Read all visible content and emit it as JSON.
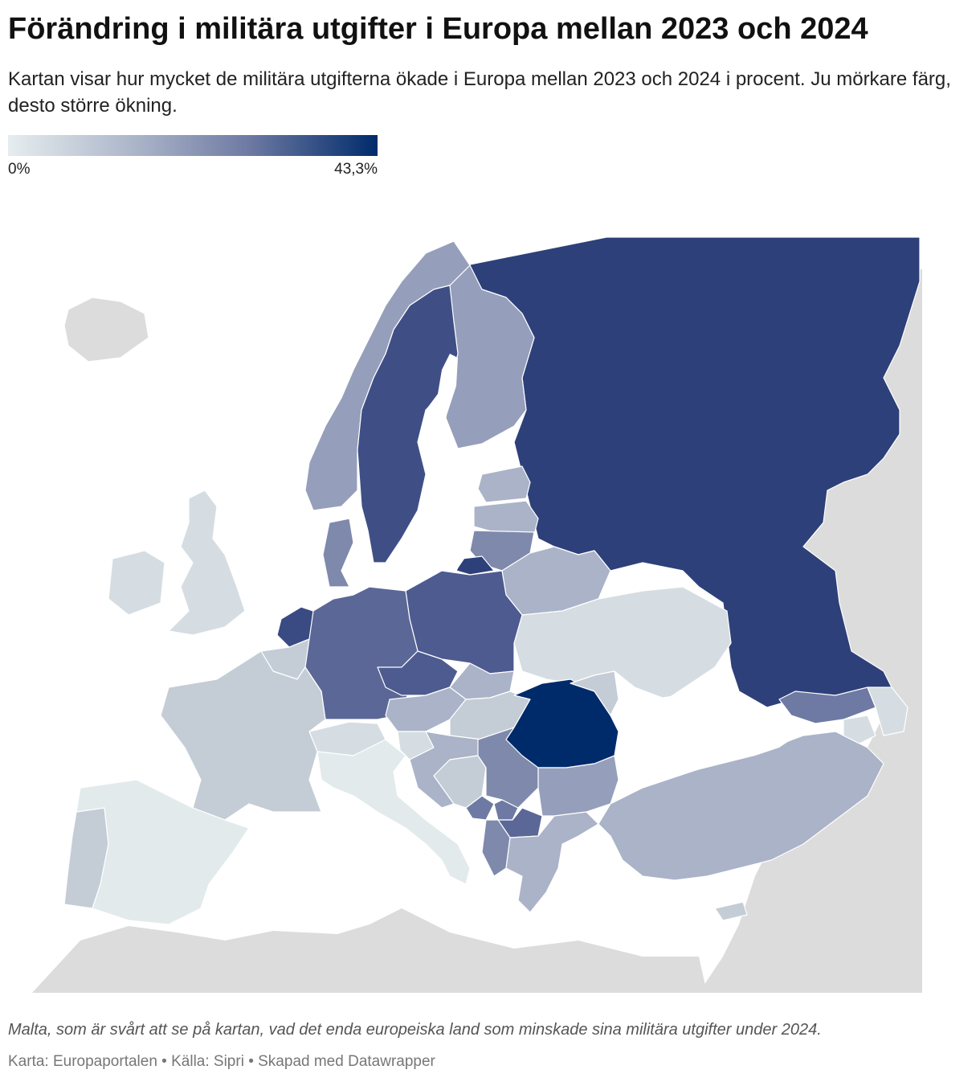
{
  "header": {
    "title": "Förändring i militära utgifter i Europa mellan 2023 och 2024",
    "subtitle": "Kartan visar hur mycket de militära utgifterna ökade i Europa mellan 2023 och 2024 i procent. Ju mörkare färg, desto större ökning."
  },
  "legend": {
    "min_label": "0%",
    "max_label": "43,3%",
    "color_low": "#e6edef",
    "color_high": "#002b6b"
  },
  "map": {
    "no_data_color": "#dcdcdc",
    "water_color": "#ffffff",
    "regions": [
      {
        "id": "russia",
        "color": "#2e4079"
      },
      {
        "id": "sweden",
        "color": "#3f4f86"
      },
      {
        "id": "norway",
        "color": "#959fbb"
      },
      {
        "id": "finland",
        "color": "#959fbb"
      },
      {
        "id": "estonia",
        "color": "#aab3c8"
      },
      {
        "id": "latvia",
        "color": "#aab3c8"
      },
      {
        "id": "lithuania",
        "color": "#7e89ac"
      },
      {
        "id": "kaliningrad",
        "color": "#2e4079"
      },
      {
        "id": "belarus",
        "color": "#aab3c8"
      },
      {
        "id": "ukraine",
        "color": "#d5dde2"
      },
      {
        "id": "poland",
        "color": "#4e5b90"
      },
      {
        "id": "germany",
        "color": "#5b6796"
      },
      {
        "id": "netherlands",
        "color": "#3a4a82"
      },
      {
        "id": "belgium",
        "color": "#c4cdd6"
      },
      {
        "id": "denmark",
        "color": "#7e89ac"
      },
      {
        "id": "czechia",
        "color": "#4e5b90"
      },
      {
        "id": "slovakia",
        "color": "#aab3c8"
      },
      {
        "id": "austria",
        "color": "#aab3c8"
      },
      {
        "id": "hungary",
        "color": "#c4cdd6"
      },
      {
        "id": "switzerland",
        "color": "#d5dde2"
      },
      {
        "id": "france",
        "color": "#c4cdd6"
      },
      {
        "id": "uk",
        "color": "#d5dde2"
      },
      {
        "id": "ireland",
        "color": "#d5dde2"
      },
      {
        "id": "iceland",
        "color": "#dcdcdc"
      },
      {
        "id": "spain",
        "color": "#e2eaec"
      },
      {
        "id": "portugal",
        "color": "#c4cdd6"
      },
      {
        "id": "italy",
        "color": "#e2eaec"
      },
      {
        "id": "slovenia",
        "color": "#d5dde2"
      },
      {
        "id": "croatia",
        "color": "#aab3c8"
      },
      {
        "id": "bosnia",
        "color": "#c4cdd6"
      },
      {
        "id": "serbia",
        "color": "#7e89ac"
      },
      {
        "id": "montenegro",
        "color": "#6e7aa3"
      },
      {
        "id": "kosovo",
        "color": "#6e7aa3"
      },
      {
        "id": "north-macedonia",
        "color": "#5b6796"
      },
      {
        "id": "albania",
        "color": "#7e89ac"
      },
      {
        "id": "romania",
        "color": "#002b6b"
      },
      {
        "id": "moldova",
        "color": "#c4cdd6"
      },
      {
        "id": "bulgaria",
        "color": "#959fbb"
      },
      {
        "id": "greece",
        "color": "#aab3c8"
      },
      {
        "id": "turkey",
        "color": "#aab3c8"
      },
      {
        "id": "georgia",
        "color": "#6e7aa3"
      },
      {
        "id": "armenia",
        "color": "#d5dde2"
      },
      {
        "id": "azerbaijan",
        "color": "#d5dde2"
      },
      {
        "id": "cyprus",
        "color": "#c4cdd6"
      }
    ]
  },
  "note": "Malta, som är svårt att se på kartan, vad det enda europeiska land som minskade sina militära utgifter under 2024.",
  "footer": "Karta: Europaportalen • Källa: Sipri • Skapad med Datawrapper"
}
